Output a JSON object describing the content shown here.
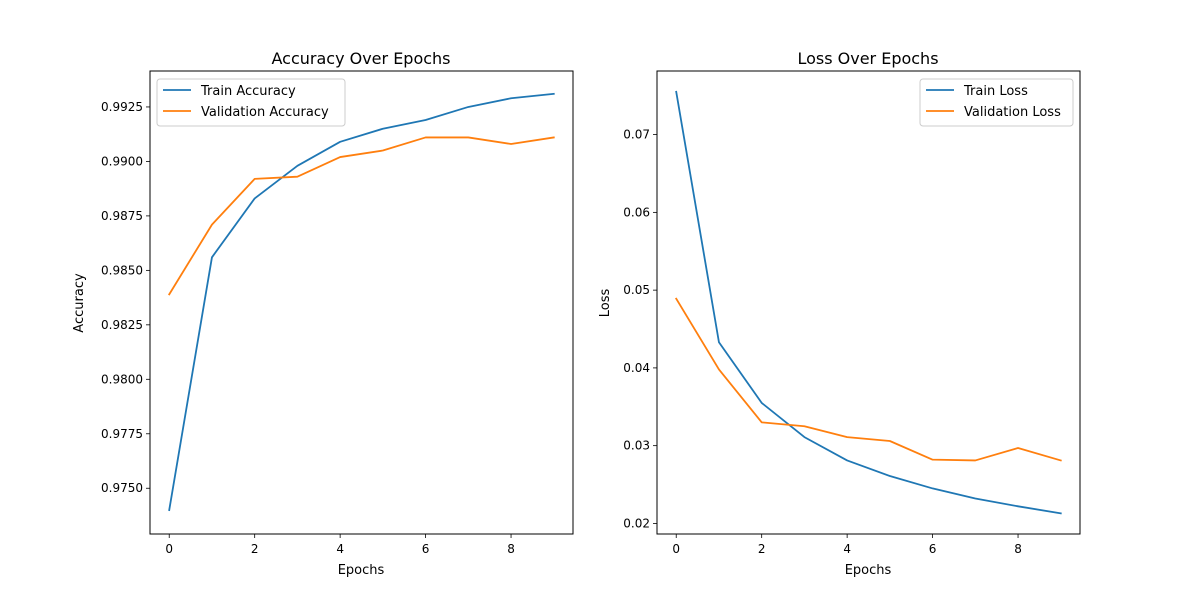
{
  "colors": {
    "train": "#1f77b4",
    "validation": "#ff7f0e",
    "axes": "#000000",
    "background": "#ffffff",
    "legend_border": "#cccccc"
  },
  "chart_data": [
    {
      "type": "line",
      "title": "Accuracy Over Epochs",
      "xlabel": "Epochs",
      "ylabel": "Accuracy",
      "x": [
        0,
        1,
        2,
        3,
        4,
        5,
        6,
        7,
        8,
        9
      ],
      "xlim": [
        -0.45,
        9.45
      ],
      "ylim": [
        0.9729,
        0.99415
      ],
      "xticks": [
        0,
        2,
        4,
        6,
        8
      ],
      "xtick_labels": [
        "0",
        "2",
        "4",
        "6",
        "8"
      ],
      "yticks": [
        0.975,
        0.9775,
        0.98,
        0.9825,
        0.985,
        0.9875,
        0.99,
        0.9925
      ],
      "ytick_labels": [
        "0.9750",
        "0.9775",
        "0.9800",
        "0.9825",
        "0.9850",
        "0.9875",
        "0.9900",
        "0.9925"
      ],
      "grid": false,
      "legend_position": "upper left",
      "series": [
        {
          "name": "Train Accuracy",
          "color_key": "train",
          "values": [
            0.974,
            0.9856,
            0.9883,
            0.9898,
            0.9909,
            0.9915,
            0.9919,
            0.9925,
            0.9929,
            0.9931
          ]
        },
        {
          "name": "Validation Accuracy",
          "color_key": "validation",
          "values": [
            0.9839,
            0.9871,
            0.9892,
            0.9893,
            0.9902,
            0.9905,
            0.9911,
            0.9911,
            0.9908,
            0.9911
          ]
        }
      ]
    },
    {
      "type": "line",
      "title": "Loss Over Epochs",
      "xlabel": "Epochs",
      "ylabel": "Loss",
      "x": [
        0,
        1,
        2,
        3,
        4,
        5,
        6,
        7,
        8,
        9
      ],
      "xlim": [
        -0.45,
        9.45
      ],
      "ylim": [
        0.01864,
        0.07818
      ],
      "xticks": [
        0,
        2,
        4,
        6,
        8
      ],
      "xtick_labels": [
        "0",
        "2",
        "4",
        "6",
        "8"
      ],
      "yticks": [
        0.02,
        0.03,
        0.04,
        0.05,
        0.06,
        0.07
      ],
      "ytick_labels": [
        "0.02",
        "0.03",
        "0.04",
        "0.05",
        "0.06",
        "0.07"
      ],
      "grid": false,
      "legend_position": "upper right",
      "series": [
        {
          "name": "Train Loss",
          "color_key": "train",
          "values": [
            0.0755,
            0.0433,
            0.0355,
            0.0311,
            0.0281,
            0.0261,
            0.0245,
            0.0232,
            0.0222,
            0.0213
          ]
        },
        {
          "name": "Validation Loss",
          "color_key": "validation",
          "values": [
            0.0489,
            0.0398,
            0.033,
            0.0325,
            0.0311,
            0.0306,
            0.0282,
            0.0281,
            0.0297,
            0.0281
          ]
        }
      ]
    }
  ]
}
